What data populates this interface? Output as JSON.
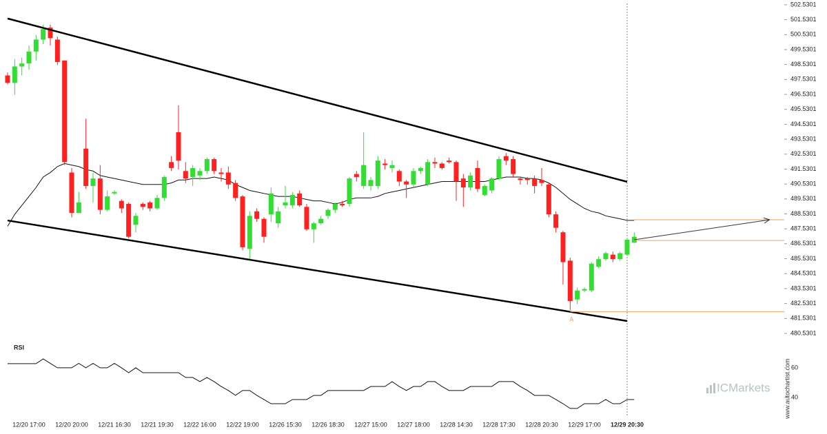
{
  "chart_data": [
    {
      "type": "candlestick",
      "categories": [
        null,
        null,
        null,
        "12/20 17:00",
        null,
        null,
        null,
        null,
        null,
        "12/20 20:00",
        null,
        null,
        null,
        null,
        null,
        "12/21 16:30",
        null,
        null,
        null,
        null,
        null,
        "12/21 19:30",
        null,
        null,
        null,
        null,
        null,
        "12/22 16:00",
        null,
        null,
        null,
        null,
        null,
        "12/22 19:00",
        null,
        null,
        null,
        null,
        null,
        "12/26 15:30",
        null,
        null,
        null,
        null,
        null,
        "12/26 18:30",
        null,
        null,
        null,
        null,
        null,
        "12/27 15:00",
        null,
        null,
        null,
        null,
        null,
        "12/27 18:00",
        null,
        null,
        null,
        null,
        null,
        "12/28 14:30",
        null,
        null,
        null,
        null,
        null,
        "12/28 17:30",
        null,
        null,
        null,
        null,
        null,
        "12/28 20:30",
        null,
        null,
        null,
        null,
        null,
        "12/29 17:00",
        null,
        null,
        null,
        null,
        null,
        "12/29 20:30",
        null
      ],
      "open": [
        497.8,
        497.3,
        498.4,
        498.6,
        499.4,
        500.2,
        501.0,
        500.2,
        498.8,
        491.3,
        488.6,
        492.9,
        490.4,
        490.9,
        488.8,
        489.9,
        489.4,
        489.2,
        487.8,
        489.2,
        489.3,
        488.9,
        489.6,
        492.0,
        494.0,
        491.4,
        491.0,
        491.1,
        491.4,
        492.2,
        491.3,
        491.3,
        490.6,
        489.7,
        486.2,
        488.7,
        488.2,
        488.5,
        487.9,
        489.1,
        489.1,
        489.9,
        489.0,
        487.5,
        487.9,
        488.4,
        488.8,
        489.2,
        489.2,
        491.2,
        490.4,
        490.4,
        490.4,
        491.9,
        491.6,
        491.4,
        490.7,
        490.5,
        491.4,
        490.5,
        492.0,
        491.9,
        492.1,
        492.0,
        490.9,
        490.3,
        491.6,
        489.8,
        490.1,
        490.9,
        492.4,
        492.2,
        490.9,
        490.9,
        490.9,
        490.8,
        490.5,
        488.5,
        487.3,
        485.4,
        482.8,
        483.4,
        483.4,
        485.0,
        485.5,
        485.8,
        485.5,
        485.8,
        486.6
      ],
      "high": [
        498.0,
        498.9,
        499.0,
        499.8,
        500.5,
        501.2,
        501.2,
        500.4,
        498.8,
        491.6,
        490.0,
        494.9,
        491.3,
        491.8,
        490.1,
        490.1,
        489.5,
        489.3,
        488.6,
        489.3,
        489.4,
        489.8,
        491.1,
        492.4,
        495.8,
        492.0,
        491.8,
        491.6,
        492.3,
        492.3,
        491.6,
        491.7,
        490.8,
        489.8,
        488.7,
        488.9,
        488.3,
        490.3,
        489.0,
        490.4,
        490.0,
        490.1,
        489.2,
        488.0,
        488.4,
        488.9,
        489.3,
        489.4,
        491.0,
        491.4,
        494.0,
        491.0,
        492.4,
        492.2,
        492.1,
        491.5,
        490.8,
        491.6,
        491.7,
        492.2,
        492.3,
        492.0,
        492.3,
        492.1,
        491.2,
        491.3,
        492.1,
        490.5,
        491.0,
        492.4,
        492.6,
        492.4,
        491.0,
        491.0,
        491.1,
        491.6,
        490.6,
        488.7,
        487.4,
        485.6,
        483.6,
        483.6,
        485.3,
        485.7,
        486.0,
        486.0,
        486.0,
        486.9,
        487.3
      ],
      "low": [
        497.2,
        496.5,
        497.8,
        498.2,
        498.8,
        499.9,
        499.8,
        498.5,
        491.8,
        488.3,
        488.6,
        490.2,
        489.3,
        488.5,
        488.7,
        489.8,
        488.6,
        486.9,
        487.3,
        488.8,
        488.7,
        488.8,
        489.4,
        491.4,
        491.5,
        490.6,
        490.4,
        490.8,
        491.2,
        491.2,
        490.7,
        490.2,
        489.4,
        486.1,
        485.5,
        488.0,
        486.6,
        488.0,
        487.6,
        488.9,
        488.9,
        489.0,
        487.4,
        486.6,
        487.8,
        488.2,
        488.6,
        489.0,
        489.0,
        490.7,
        490.2,
        490.1,
        490.2,
        491.5,
        491.3,
        490.4,
        489.6,
        490.3,
        491.2,
        490.4,
        491.6,
        491.5,
        491.9,
        489.4,
        489.0,
        490.1,
        490.0,
        489.7,
        489.9,
        490.8,
        491.8,
        491.0,
        490.5,
        490.5,
        489.9,
        490.4,
        488.3,
        487.3,
        483.8,
        482.1,
        482.5,
        483.3,
        483.3,
        484.9,
        485.4,
        485.3,
        485.4,
        485.7,
        486.6
      ],
      "close": [
        497.3,
        498.4,
        498.6,
        499.4,
        500.2,
        500.9,
        500.3,
        498.7,
        492.0,
        488.6,
        489.3,
        490.4,
        490.9,
        488.8,
        489.7,
        490.0,
        488.9,
        487.0,
        488.4,
        489.0,
        488.9,
        489.6,
        491.0,
        491.6,
        492.1,
        490.9,
        491.6,
        491.4,
        492.2,
        491.4,
        491.2,
        490.5,
        489.6,
        486.3,
        488.4,
        488.2,
        487.0,
        489.9,
        488.7,
        489.3,
        489.8,
        489.1,
        487.5,
        487.9,
        488.2,
        488.8,
        489.2,
        489.1,
        490.9,
        491.0,
        491.8,
        490.8,
        492.1,
        491.8,
        491.8,
        490.7,
        490.5,
        491.4,
        491.6,
        492.0,
        491.9,
        491.6,
        492.0,
        490.7,
        490.3,
        491.1,
        490.2,
        490.4,
        490.9,
        492.2,
        492.1,
        491.2,
        490.8,
        490.8,
        490.4,
        490.6,
        488.5,
        487.6,
        485.3,
        482.7,
        483.4,
        483.5,
        485.2,
        485.5,
        485.9,
        485.5,
        485.9,
        486.8,
        487.0
      ],
      "up_color": "#33dd33",
      "down_color": "#ff2020",
      "moving_average": {
        "color": "#111111",
        "values": [
          487.7,
          488.5,
          489.1,
          489.7,
          490.3,
          491.0,
          491.3,
          491.7,
          491.9,
          491.8,
          491.7,
          491.5,
          491.4,
          491.1,
          491.0,
          490.9,
          490.8,
          490.7,
          490.6,
          490.5,
          490.5,
          490.5,
          490.5,
          490.6,
          490.8,
          490.8,
          490.9,
          490.9,
          490.9,
          491.0,
          490.9,
          490.8,
          490.5,
          490.3,
          490.1,
          490.0,
          489.9,
          489.8,
          489.7,
          489.7,
          489.7,
          489.6,
          489.5,
          489.4,
          489.4,
          489.3,
          489.2,
          489.3,
          489.5,
          489.6,
          489.6,
          489.6,
          489.7,
          489.9,
          490.0,
          490.1,
          490.2,
          490.3,
          490.4,
          490.5,
          490.6,
          490.7,
          490.7,
          490.7,
          490.7,
          490.7,
          490.7,
          490.7,
          490.8,
          490.9,
          491.0,
          491.0,
          491.0,
          490.9,
          490.9,
          490.8,
          490.6,
          490.3,
          489.9,
          489.5,
          489.2,
          488.9,
          488.7,
          488.6,
          488.4,
          488.3,
          488.2,
          488.1,
          488.1
        ]
      },
      "channel": [
        {
          "from": [
            0,
            501.61
          ],
          "to": [
            87,
            490.68
          ]
        },
        {
          "from": [
            0,
            488.09
          ],
          "to": [
            87,
            481.36
          ]
        }
      ],
      "projection": {
        "from": [
          88,
          486.8
        ],
        "to": [
          107,
          488.14
        ]
      },
      "levels": [
        {
          "value": 488.14,
          "from": 88
        },
        {
          "value": 486.75,
          "from": 88
        },
        {
          "value": 481.99,
          "from": 79
        }
      ],
      "level_color": "#e8a060",
      "point_label": {
        "text": "A",
        "index": 79,
        "value": 481.64
      },
      "ylim": [
        480.16,
        502.85
      ],
      "yticks": [
        502.5301,
        501.5301,
        500.5301,
        499.5301,
        498.5301,
        497.5301,
        496.5301,
        495.5301,
        494.5301,
        493.5301,
        492.5301,
        491.5301,
        490.5301,
        489.5301,
        488.5301,
        487.5301,
        486.5301,
        485.5301,
        484.5301,
        483.5301,
        482.5301,
        481.5301,
        480.5301
      ]
    },
    {
      "type": "line",
      "title": "RSI",
      "color": "#111111",
      "values": [
        62.8,
        62.8,
        62.8,
        62.8,
        62.8,
        66,
        63,
        60,
        60,
        60,
        63,
        60,
        63,
        60,
        60,
        63,
        60,
        56.7,
        60,
        56.7,
        56.7,
        56.7,
        56.7,
        56.7,
        56.7,
        53.5,
        53.5,
        50.7,
        53.5,
        50.7,
        47.4,
        44.7,
        41.4,
        44.7,
        44.7,
        41.4,
        38.6,
        35.8,
        35.8,
        35.8,
        38.6,
        38.6,
        38.6,
        41.4,
        41.4,
        44.7,
        44.7,
        44.7,
        44.7,
        44.7,
        44.7,
        47.4,
        47.4,
        47.4,
        50.7,
        47.4,
        44.7,
        47.4,
        47.4,
        50.7,
        50.7,
        47.4,
        44.7,
        44.7,
        44.7,
        47.4,
        47.4,
        47.4,
        47.4,
        50.7,
        50.7,
        50.7,
        47.4,
        44.7,
        41.4,
        41.4,
        41.4,
        38.6,
        35.8,
        32.6,
        32.6,
        35.8,
        35.8,
        35.8,
        38.6,
        35.8,
        35.8,
        38.6,
        38.6
      ],
      "ylim": [
        29.3,
        79
      ],
      "yticks": [
        40,
        60
      ]
    }
  ],
  "branding": {
    "logo": "ICMarkets",
    "credit": "www.autochartist.com"
  }
}
